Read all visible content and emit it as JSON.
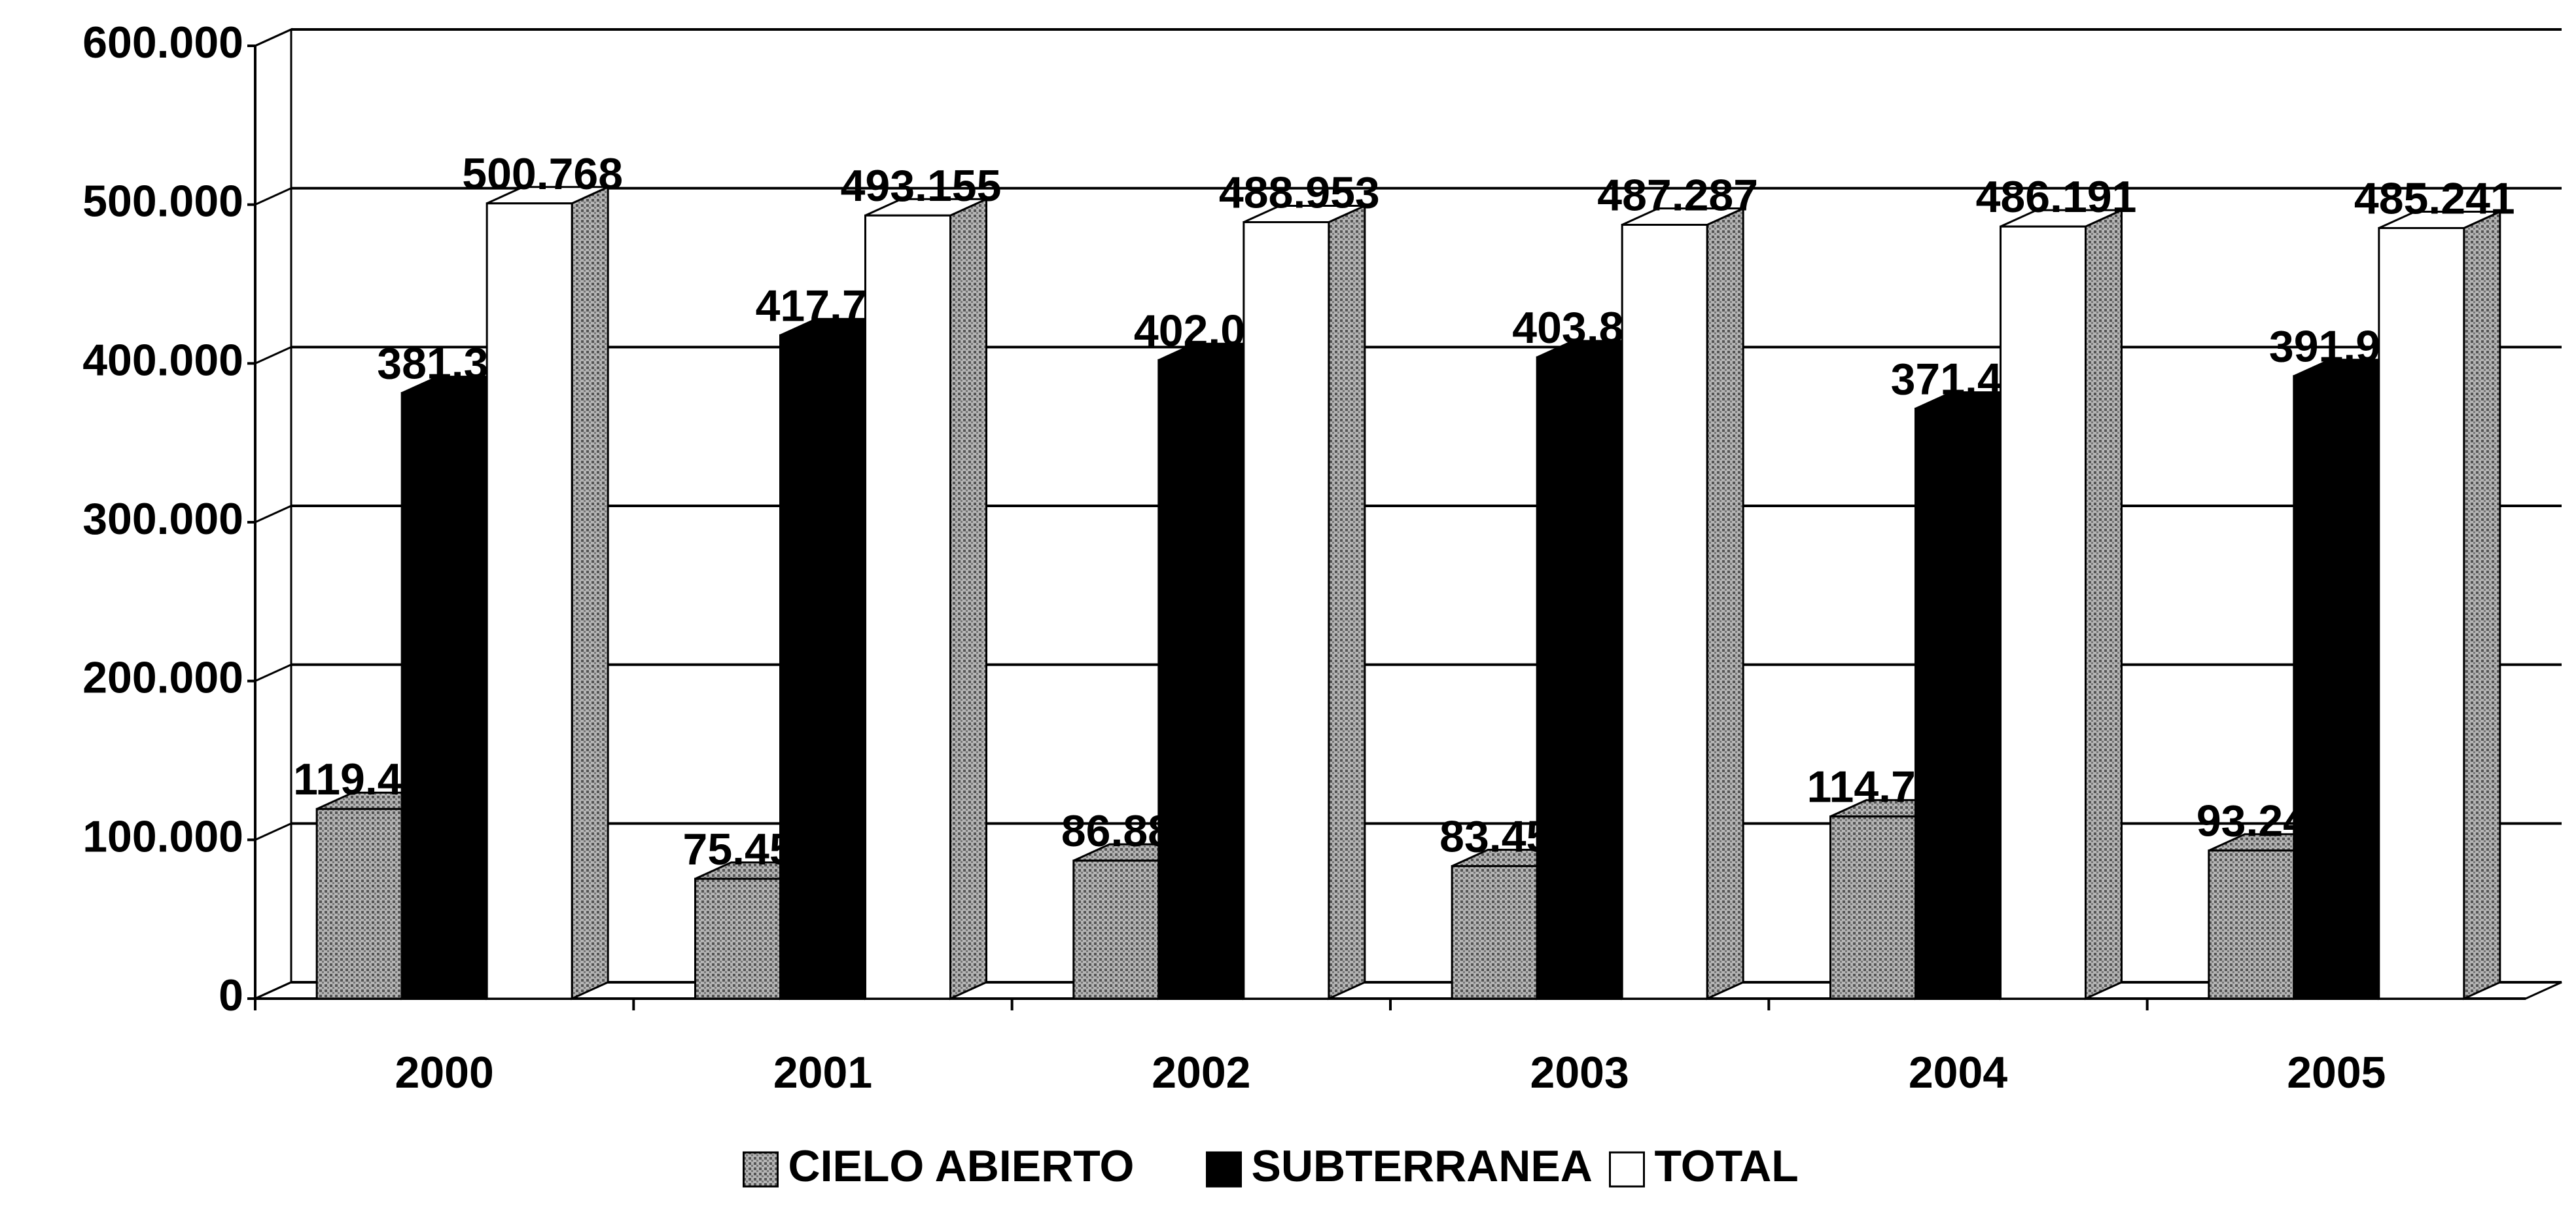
{
  "chart_data": {
    "type": "bar3d",
    "categories": [
      "2000",
      "2001",
      "2002",
      "2003",
      "2004",
      "2005"
    ],
    "series": [
      {
        "name": "CIELO ABIERTO",
        "color": "#9a9a9a",
        "values": [
          119416,
          75455,
          86882,
          83456,
          114706,
          93244
        ],
        "value_labels": [
          "119.416",
          "75.455",
          "86.882",
          "83.456",
          "114.706",
          "93.244"
        ]
      },
      {
        "name": "SUBTERRANEA",
        "color": "#000000",
        "values": [
          381352,
          417700,
          402071,
          403831,
          371485,
          391997
        ],
        "value_labels": [
          "381.352",
          "417.700",
          "402.071",
          "403.831",
          "371.485",
          "391.997"
        ]
      },
      {
        "name": "TOTAL",
        "color": "#ffffff",
        "values": [
          500768,
          493155,
          488953,
          487287,
          486191,
          485241
        ],
        "value_labels": [
          "500.768",
          "493.155",
          "488.953",
          "487.287",
          "486.191",
          "485.241"
        ]
      }
    ],
    "ylim": [
      0,
      600000
    ],
    "yticks": [
      0,
      {
        "value": 100000,
        "label": "100.000"
      },
      {
        "value": 200000,
        "label": "200.000"
      },
      {
        "value": 300000,
        "label": "300.000"
      },
      {
        "value": 400000,
        "label": "400.000"
      },
      {
        "value": 500000,
        "label": "500.000"
      },
      {
        "value": 600000,
        "label": "600.000"
      }
    ],
    "grid": true,
    "legend": "bottom"
  }
}
